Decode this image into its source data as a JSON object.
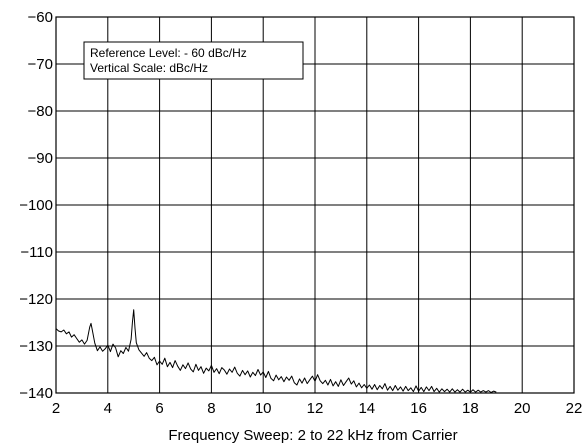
{
  "chart_data": {
    "type": "line",
    "title": "",
    "xlabel": "Frequency Sweep: 2 to 22 kHz from Carrier",
    "ylabel": "",
    "xlim": [
      2,
      22
    ],
    "ylim": [
      -140,
      -60
    ],
    "x_ticks": [
      2,
      4,
      6,
      8,
      10,
      12,
      14,
      16,
      18,
      20,
      22
    ],
    "y_ticks": [
      -60,
      -70,
      -80,
      -90,
      -100,
      -110,
      -120,
      -130,
      -140
    ],
    "y_tick_labels": [
      "−60",
      "−70",
      "−80",
      "−90",
      "−100",
      "−110",
      "−120",
      "−130",
      "−140"
    ],
    "grid": true,
    "annotation": {
      "lines": [
        "Reference Level: - 60 dBc/Hz",
        "Vertical Scale: dBc/Hz"
      ],
      "placement": "top-left"
    },
    "series": [
      {
        "color": "#000000",
        "points": [
          [
            2.0,
            -126.3
          ],
          [
            2.1,
            -126.8
          ],
          [
            2.2,
            -127.0
          ],
          [
            2.3,
            -126.6
          ],
          [
            2.4,
            -127.4
          ],
          [
            2.5,
            -127.0
          ],
          [
            2.6,
            -128.1
          ],
          [
            2.7,
            -127.6
          ],
          [
            2.8,
            -128.4
          ],
          [
            2.9,
            -129.2
          ],
          [
            3.0,
            -128.7
          ],
          [
            3.1,
            -129.6
          ],
          [
            3.2,
            -128.8
          ],
          [
            3.3,
            -126.0
          ],
          [
            3.35,
            -125.2
          ],
          [
            3.4,
            -126.6
          ],
          [
            3.5,
            -129.4
          ],
          [
            3.6,
            -131.0
          ],
          [
            3.7,
            -130.2
          ],
          [
            3.8,
            -131.1
          ],
          [
            3.9,
            -130.6
          ],
          [
            4.0,
            -129.8
          ],
          [
            4.1,
            -131.2
          ],
          [
            4.2,
            -129.6
          ],
          [
            4.3,
            -130.4
          ],
          [
            4.4,
            -132.3
          ],
          [
            4.5,
            -131.0
          ],
          [
            4.6,
            -131.6
          ],
          [
            4.7,
            -130.3
          ],
          [
            4.8,
            -131.1
          ],
          [
            4.9,
            -128.6
          ],
          [
            4.95,
            -125.0
          ],
          [
            5.0,
            -122.3
          ],
          [
            5.05,
            -126.2
          ],
          [
            5.1,
            -129.3
          ],
          [
            5.2,
            -130.8
          ],
          [
            5.3,
            -131.5
          ],
          [
            5.4,
            -132.2
          ],
          [
            5.5,
            -131.4
          ],
          [
            5.6,
            -132.6
          ],
          [
            5.7,
            -133.1
          ],
          [
            5.8,
            -132.4
          ],
          [
            5.9,
            -134.0
          ],
          [
            6.0,
            -133.2
          ],
          [
            6.1,
            -133.9
          ],
          [
            6.2,
            -132.6
          ],
          [
            6.3,
            -134.4
          ],
          [
            6.4,
            -133.5
          ],
          [
            6.5,
            -134.6
          ],
          [
            6.6,
            -133.1
          ],
          [
            6.7,
            -134.3
          ],
          [
            6.8,
            -135.2
          ],
          [
            6.9,
            -134.0
          ],
          [
            7.0,
            -134.8
          ],
          [
            7.1,
            -133.6
          ],
          [
            7.2,
            -134.9
          ],
          [
            7.3,
            -135.5
          ],
          [
            7.4,
            -133.9
          ],
          [
            7.5,
            -135.2
          ],
          [
            7.6,
            -134.4
          ],
          [
            7.7,
            -135.8
          ],
          [
            7.8,
            -134.7
          ],
          [
            7.9,
            -135.3
          ],
          [
            8.0,
            -134.1
          ],
          [
            8.1,
            -135.6
          ],
          [
            8.2,
            -134.8
          ],
          [
            8.3,
            -135.9
          ],
          [
            8.4,
            -134.6
          ],
          [
            8.5,
            -135.1
          ],
          [
            8.6,
            -136.0
          ],
          [
            8.7,
            -134.9
          ],
          [
            8.8,
            -135.6
          ],
          [
            8.9,
            -134.5
          ],
          [
            9.0,
            -135.8
          ],
          [
            9.1,
            -136.4
          ],
          [
            9.2,
            -135.2
          ],
          [
            9.3,
            -136.1
          ],
          [
            9.4,
            -135.3
          ],
          [
            9.5,
            -136.6
          ],
          [
            9.6,
            -135.6
          ],
          [
            9.7,
            -136.3
          ],
          [
            9.8,
            -135.0
          ],
          [
            9.9,
            -136.2
          ],
          [
            10.0,
            -135.5
          ],
          [
            10.1,
            -136.7
          ],
          [
            10.2,
            -135.4
          ],
          [
            10.3,
            -136.9
          ],
          [
            10.4,
            -137.4
          ],
          [
            10.5,
            -136.2
          ],
          [
            10.6,
            -137.2
          ],
          [
            10.7,
            -136.5
          ],
          [
            10.8,
            -137.6
          ],
          [
            10.9,
            -136.6
          ],
          [
            11.0,
            -137.3
          ],
          [
            11.1,
            -136.4
          ],
          [
            11.2,
            -137.8
          ],
          [
            11.3,
            -138.3
          ],
          [
            11.4,
            -137.0
          ],
          [
            11.5,
            -137.9
          ],
          [
            11.6,
            -136.8
          ],
          [
            11.7,
            -138.0
          ],
          [
            11.8,
            -137.2
          ],
          [
            11.9,
            -136.4
          ],
          [
            12.0,
            -137.5
          ],
          [
            12.1,
            -136.1
          ],
          [
            12.2,
            -137.4
          ],
          [
            12.3,
            -138.0
          ],
          [
            12.4,
            -137.3
          ],
          [
            12.5,
            -138.3
          ],
          [
            12.6,
            -137.1
          ],
          [
            12.7,
            -138.5
          ],
          [
            12.8,
            -137.6
          ],
          [
            12.9,
            -138.6
          ],
          [
            13.0,
            -137.2
          ],
          [
            13.1,
            -138.4
          ],
          [
            13.2,
            -137.6
          ],
          [
            13.3,
            -136.8
          ],
          [
            13.4,
            -138.1
          ],
          [
            13.5,
            -137.4
          ],
          [
            13.6,
            -138.7
          ],
          [
            13.7,
            -137.9
          ],
          [
            13.8,
            -138.9
          ],
          [
            13.9,
            -138.2
          ],
          [
            14.0,
            -139.0
          ],
          [
            14.1,
            -138.3
          ],
          [
            14.2,
            -139.2
          ],
          [
            14.3,
            -138.2
          ],
          [
            14.4,
            -139.3
          ],
          [
            14.5,
            -138.4
          ],
          [
            14.6,
            -139.1
          ],
          [
            14.7,
            -138.0
          ],
          [
            14.8,
            -139.4
          ],
          [
            14.9,
            -138.6
          ],
          [
            15.0,
            -139.5
          ],
          [
            15.1,
            -138.4
          ],
          [
            15.2,
            -139.4
          ],
          [
            15.3,
            -138.7
          ],
          [
            15.4,
            -139.6
          ],
          [
            15.5,
            -138.6
          ],
          [
            15.6,
            -139.5
          ],
          [
            15.7,
            -138.9
          ],
          [
            15.8,
            -139.7
          ],
          [
            15.9,
            -138.5
          ],
          [
            16.0,
            -139.6
          ],
          [
            16.1,
            -138.8
          ],
          [
            16.2,
            -139.7
          ],
          [
            16.3,
            -138.7
          ],
          [
            16.4,
            -139.5
          ],
          [
            16.5,
            -138.6
          ],
          [
            16.6,
            -139.7
          ],
          [
            16.7,
            -139.0
          ],
          [
            16.8,
            -139.8
          ],
          [
            16.9,
            -139.1
          ],
          [
            17.0,
            -139.7
          ],
          [
            17.1,
            -139.2
          ],
          [
            17.2,
            -139.8
          ],
          [
            17.3,
            -139.1
          ],
          [
            17.4,
            -139.8
          ],
          [
            17.5,
            -139.3
          ],
          [
            17.6,
            -139.8
          ],
          [
            17.7,
            -139.2
          ],
          [
            17.8,
            -139.8
          ],
          [
            17.9,
            -139.4
          ],
          [
            18.0,
            -139.8
          ],
          [
            18.1,
            -139.3
          ],
          [
            18.2,
            -139.8
          ],
          [
            18.3,
            -139.4
          ],
          [
            18.4,
            -139.8
          ],
          [
            18.5,
            -139.5
          ],
          [
            18.6,
            -139.8
          ],
          [
            18.7,
            -139.5
          ],
          [
            18.8,
            -139.9
          ],
          [
            18.9,
            -139.6
          ],
          [
            19.0,
            -139.8
          ]
        ]
      }
    ]
  }
}
